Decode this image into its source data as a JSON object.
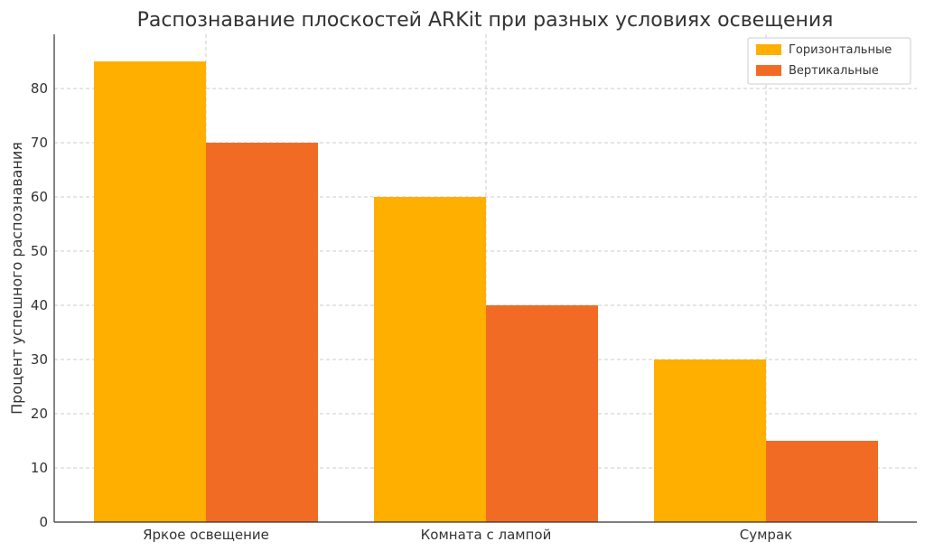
{
  "chart_data": {
    "type": "bar",
    "title": "Распознавание плоскостей ARKit при разных условиях освещения",
    "xlabel": "",
    "ylabel": "Процент успешного распознавания",
    "categories": [
      "Яркое освещение",
      "Комната с лампой",
      "Сумрак"
    ],
    "series": [
      {
        "name": "Горизонтальные",
        "values": [
          85,
          60,
          30
        ],
        "color": "#FFAF00"
      },
      {
        "name": "Вертикальные",
        "values": [
          70,
          40,
          15
        ],
        "color": "#F26B24"
      }
    ],
    "ylim": [
      0,
      90
    ],
    "yticks": [
      0,
      10,
      20,
      30,
      40,
      50,
      60,
      70,
      80
    ],
    "grid": true,
    "legend_position": "top-right"
  }
}
